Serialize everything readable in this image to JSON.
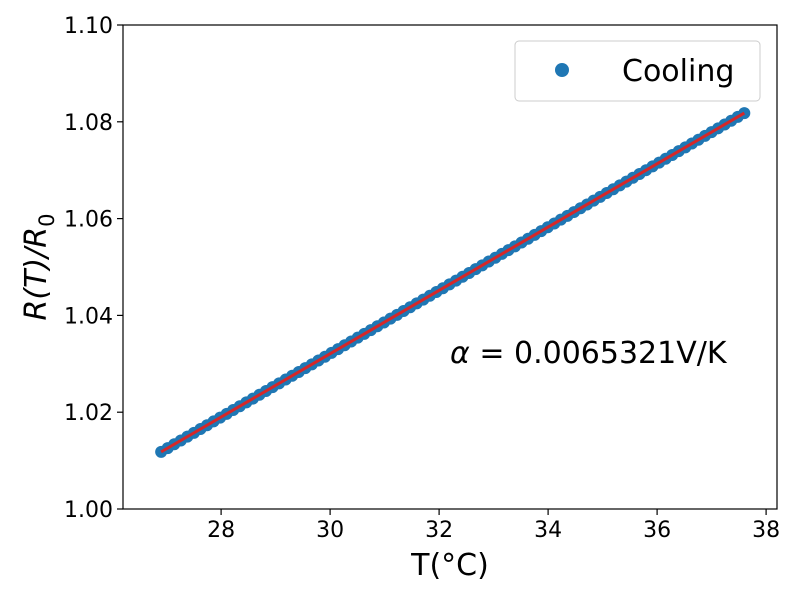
{
  "chart_data": {
    "type": "scatter",
    "xlabel": "T(°C)",
    "ylabel_main": "R(T)/R",
    "ylabel_sub": "0",
    "xlim": [
      26.2,
      38.2
    ],
    "ylim": [
      1.0,
      1.1
    ],
    "xticks": [
      28,
      30,
      32,
      34,
      36,
      38
    ],
    "yticks": [
      1.0,
      1.02,
      1.04,
      1.06,
      1.08,
      1.1
    ],
    "grid": false,
    "legend_position": "top-right",
    "annotation": {
      "alpha_symbol": "α",
      "text": " = 0.0065321V/K"
    },
    "series": [
      {
        "name": "Cooling",
        "kind": "points",
        "color": "#1f77b4",
        "x_start": 26.9,
        "x_end": 37.6,
        "y_start": 1.0118,
        "y_end": 1.0818,
        "num_points": 90
      }
    ],
    "fit_line": {
      "color": "#d62728",
      "x": [
        26.9,
        37.6
      ],
      "y": [
        1.0118,
        1.0818
      ]
    }
  }
}
